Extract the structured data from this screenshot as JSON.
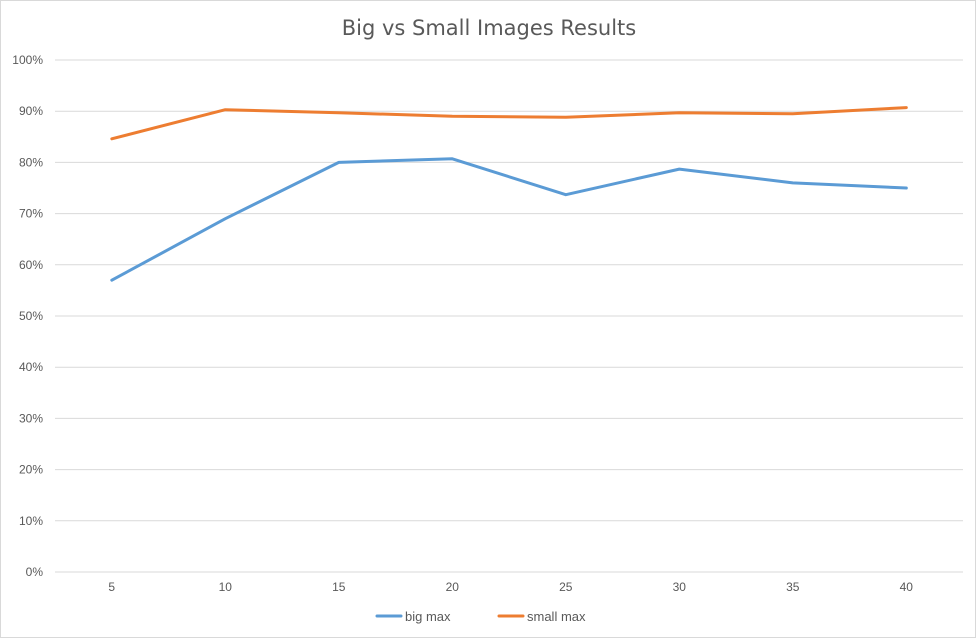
{
  "chart_data": {
    "type": "line",
    "title": "Big vs Small Images Results",
    "xlabel": "",
    "ylabel": "",
    "x": [
      5,
      10,
      15,
      20,
      25,
      30,
      35,
      40
    ],
    "x_tick_labels": [
      "5",
      "10",
      "15",
      "20",
      "25",
      "30",
      "35",
      "40"
    ],
    "ylim": [
      0,
      1
    ],
    "y_tick_labels": [
      "0%",
      "10%",
      "20%",
      "30%",
      "40%",
      "50%",
      "60%",
      "70%",
      "80%",
      "90%",
      "100%"
    ],
    "grid": true,
    "legend_position": "bottom",
    "series": [
      {
        "name": "big max",
        "color": "#5b9bd5",
        "values": [
          0.57,
          0.69,
          0.8,
          0.807,
          0.737,
          0.787,
          0.76,
          0.75
        ]
      },
      {
        "name": "small max",
        "color": "#ed7d31",
        "values": [
          0.846,
          0.903,
          0.897,
          0.89,
          0.888,
          0.897,
          0.895,
          0.907
        ]
      }
    ]
  }
}
